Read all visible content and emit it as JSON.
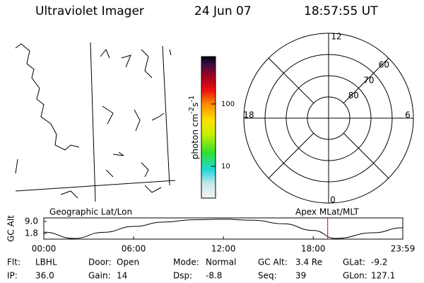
{
  "header": {
    "title": "Ultraviolet Imager",
    "date": "24 Jun 07",
    "time": "18:57:55 UT"
  },
  "colorbar": {
    "label": [
      "photon cm",
      "-2",
      "s",
      "-1"
    ],
    "scale": "log",
    "lim": [
      3.1,
      575
    ],
    "ticks": [
      10,
      100
    ]
  },
  "polar": {
    "rlim": [
      90,
      50
    ],
    "rticks": [
      80,
      70,
      60
    ],
    "mlt_labels": [
      "12",
      "18",
      "6",
      "0"
    ]
  },
  "map_label": "Geographic Lat/Lon",
  "polar_label": "Apex MLat/MLT",
  "chart_data": {
    "type": "line",
    "ylabel": "GC Alt",
    "x": [
      0,
      2,
      4,
      6,
      8,
      10,
      12,
      14,
      16,
      18,
      19.5,
      22,
      23.983
    ],
    "series": [
      {
        "name": "GC Alt",
        "color": "#000000",
        "values": [
          2.6,
          -1.2,
          2.5,
          6.0,
          8.6,
          10.0,
          10.3,
          9.7,
          7.6,
          3.6,
          -1.2,
          2.2,
          5.2
        ]
      }
    ],
    "xlim": [
      0,
      23.983
    ],
    "xticks": [
      {
        "value": 0,
        "label": "00:00"
      },
      {
        "value": 6,
        "label": "06:00"
      },
      {
        "value": 12,
        "label": "12:00"
      },
      {
        "value": 18,
        "label": "18:00"
      },
      {
        "value": 23.983,
        "label": "23:59"
      }
    ],
    "ylim": [
      -1.6,
      11.1
    ],
    "yticks": [
      1.8,
      {
        "value": 9,
        "label": "9.0"
      }
    ],
    "current_time": 18.965,
    "current_time_color": "#cc0000"
  },
  "status": [
    [
      "Flt:",
      "LBHL"
    ],
    [
      "Door:",
      "Open"
    ],
    [
      "Mode:",
      "Normal"
    ],
    [
      "GC Alt:",
      "3.4 Re"
    ],
    [
      "GLat:",
      "-9.2"
    ],
    [
      "IP:",
      "36.0"
    ],
    [
      "Gain:",
      "14"
    ],
    [
      "Dsp:",
      "-8.8"
    ],
    [
      "Seq:",
      "39"
    ],
    [
      "GLon:",
      "127.1"
    ]
  ]
}
